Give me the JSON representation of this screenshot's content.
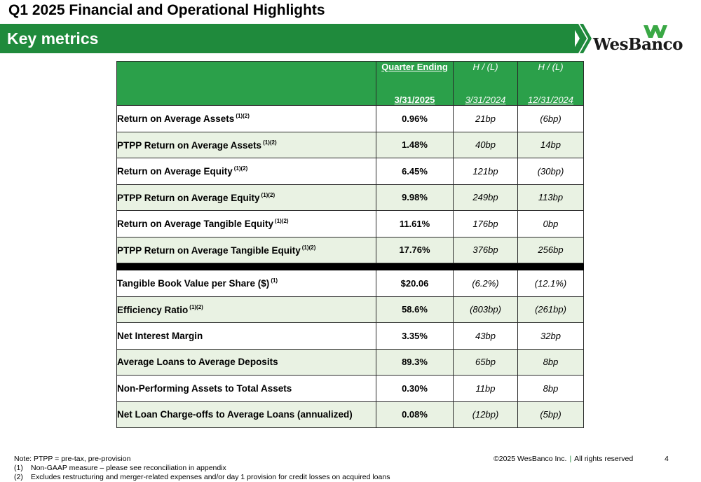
{
  "slide_title": "Q1 2025 Financial and Operational Highlights",
  "banner_title": "Key metrics",
  "logo": {
    "text": "WesBanco",
    "mark": "wesbanco-w-logo"
  },
  "colors": {
    "brand_green": "#1f8a3c",
    "header_green": "#2ba04a",
    "row_green": "#e9f2e3"
  },
  "table": {
    "headers": {
      "quarter_top": "Quarter Ending",
      "quarter_bottom": "3/31/2025",
      "h1_top": "H / (L)",
      "h1_bottom": "3/31/2024",
      "h2_top": "H / (L)",
      "h2_bottom": "12/31/2024"
    },
    "rows": [
      {
        "label": "Return on Average Assets",
        "sup": "(1)(2)",
        "value": "0.96%",
        "h1": "21bp",
        "h2": "(6bp)"
      },
      {
        "label": "PTPP Return on Average Assets",
        "sup": "(1)(2)",
        "value": "1.48%",
        "h1": "40bp",
        "h2": "14bp"
      },
      {
        "label": "Return on Average Equity",
        "sup": "(1)(2)",
        "value": "6.45%",
        "h1": "121bp",
        "h2": "(30bp)"
      },
      {
        "label": "PTPP Return on Average Equity",
        "sup": "(1)(2)",
        "value": "9.98%",
        "h1": "249bp",
        "h2": "113bp"
      },
      {
        "label": "Return on Average Tangible Equity",
        "sup": "(1)(2)",
        "value": "11.61%",
        "h1": "176bp",
        "h2": "0bp"
      },
      {
        "label": "PTPP Return on Average Tangible Equity",
        "sup": "(1)(2)",
        "value": "17.76%",
        "h1": "376bp",
        "h2": "256bp"
      },
      {
        "label": "Tangible Book Value per Share ($)",
        "sup": "(1)",
        "value": "$20.06",
        "h1": "(6.2%)",
        "h2": "(12.1%)"
      },
      {
        "label": "Efficiency Ratio",
        "sup": "(1)(2)",
        "value": "58.6%",
        "h1": "(803bp)",
        "h2": "(261bp)"
      },
      {
        "label": "Net Interest Margin",
        "sup": "",
        "value": "3.35%",
        "h1": "43bp",
        "h2": "32bp"
      },
      {
        "label": "Average Loans to Average Deposits",
        "sup": "",
        "value": "89.3%",
        "h1": "65bp",
        "h2": "8bp"
      },
      {
        "label": "Non-Performing Assets to Total Assets",
        "sup": "",
        "value": "0.30%",
        "h1": "11bp",
        "h2": "8bp"
      },
      {
        "label": "Net Loan Charge-offs to Average Loans (annualized)",
        "sup": "",
        "value": "0.08%",
        "h1": "(12bp)",
        "h2": "(5bp)"
      }
    ]
  },
  "footer": {
    "note": "Note:  PTPP = pre-tax, pre-provision",
    "fn1_num": "(1)",
    "fn1": "Non-GAAP measure – please see reconciliation in appendix",
    "fn2_num": "(2)",
    "fn2": "Excludes restructuring and merger-related expenses and/or day 1 provision for credit losses on acquired loans",
    "copyright": "©2025 WesBanco Inc.",
    "separator": "|",
    "rights": "All rights reserved",
    "page": "4"
  }
}
